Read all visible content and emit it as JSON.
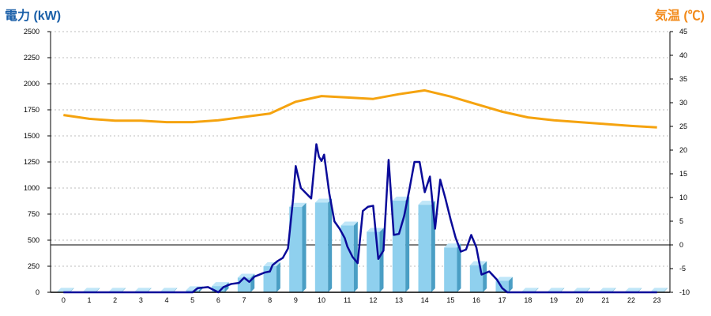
{
  "header": {
    "left_axis_title": "電力 (kW)",
    "right_axis_title": "気温 (℃)"
  },
  "colors": {
    "bar_face": "#8fd0ee",
    "bar_side": "#4a9ec4",
    "bar_top": "#bfe6f8",
    "power_line": "#0a0a99",
    "temp_line": "#f5a30f",
    "grid": "#bdbdbd",
    "zero_line": "#000000"
  },
  "chart_data": {
    "type": "bar",
    "categories": [
      "0",
      "1",
      "2",
      "3",
      "4",
      "5",
      "6",
      "7",
      "8",
      "9",
      "10",
      "11",
      "12",
      "13",
      "14",
      "15",
      "16",
      "17",
      "18",
      "19",
      "20",
      "21",
      "22",
      "23"
    ],
    "ylabel": "電力 (kW)",
    "y2label": "気温 (℃)",
    "ylim": [
      0,
      2500
    ],
    "yticks": [
      0,
      250,
      500,
      750,
      1000,
      1250,
      1500,
      1750,
      2000,
      2250,
      2500
    ],
    "y2lim": [
      -10,
      45
    ],
    "y2ticks": [
      -10,
      -5,
      0,
      5,
      10,
      15,
      20,
      25,
      30,
      35,
      40,
      45
    ],
    "grid": true,
    "series": [
      {
        "type": "bar",
        "axis": "left",
        "values": [
          5,
          5,
          5,
          5,
          5,
          20,
          60,
          140,
          250,
          820,
          860,
          640,
          580,
          880,
          840,
          430,
          260,
          110,
          5,
          5,
          5,
          5,
          5,
          5
        ]
      },
      {
        "type": "line",
        "axis": "left",
        "x": [
          0,
          1,
          2,
          3,
          4,
          5,
          5.2,
          5.6,
          6,
          6.2,
          6.5,
          6.8,
          7,
          7.2,
          7.4,
          7.6,
          7.8,
          8,
          8.1,
          8.3,
          8.5,
          8.7,
          8.9,
          9,
          9.2,
          9.4,
          9.6,
          9.8,
          9.9,
          10,
          10.1,
          10.3,
          10.5,
          10.7,
          10.9,
          11,
          11.2,
          11.4,
          11.6,
          11.8,
          12,
          12.2,
          12.4,
          12.6,
          12.8,
          13,
          13.2,
          13.4,
          13.6,
          13.8,
          14,
          14.2,
          14.4,
          14.6,
          14.8,
          15,
          15.2,
          15.4,
          15.6,
          15.8,
          16,
          16.2,
          16.5,
          16.8,
          17,
          17.2,
          17.4,
          18,
          19,
          20,
          21,
          22,
          23
        ],
        "y": [
          0,
          0,
          0,
          0,
          0,
          0,
          40,
          50,
          0,
          50,
          80,
          90,
          140,
          100,
          150,
          170,
          190,
          200,
          260,
          300,
          330,
          420,
          900,
          1210,
          1000,
          950,
          900,
          1420,
          1300,
          1260,
          1320,
          950,
          680,
          610,
          520,
          440,
          340,
          280,
          780,
          820,
          830,
          320,
          400,
          1270,
          550,
          560,
          730,
          980,
          1250,
          1250,
          960,
          1110,
          610,
          1080,
          900,
          700,
          520,
          390,
          410,
          550,
          430,
          170,
          200,
          120,
          40,
          0,
          0,
          0,
          0,
          0,
          0,
          0,
          0
        ]
      },
      {
        "type": "line",
        "axis": "right",
        "x": [
          0,
          1,
          2,
          3,
          4,
          5,
          6,
          7,
          8,
          9,
          10,
          11,
          12,
          13,
          14,
          15,
          16,
          17,
          18,
          19,
          20,
          21,
          22,
          23
        ],
        "y": [
          27.4,
          26.6,
          26.2,
          26.2,
          25.9,
          25.9,
          26.3,
          27.0,
          27.7,
          30.2,
          31.4,
          31.1,
          30.8,
          31.8,
          32.6,
          31.3,
          29.7,
          28.1,
          26.9,
          26.3,
          25.9,
          25.5,
          25.1,
          24.8
        ]
      }
    ]
  }
}
